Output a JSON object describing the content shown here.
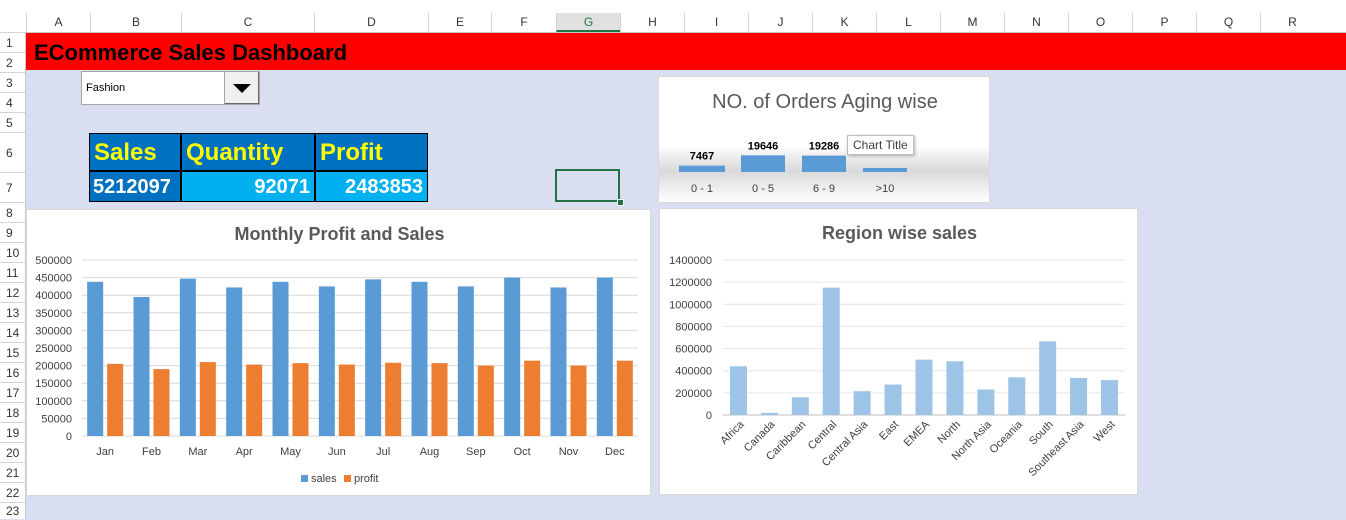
{
  "sheet": {
    "columns": [
      "A",
      "B",
      "C",
      "D",
      "E",
      "F",
      "G",
      "H",
      "I",
      "J",
      "K",
      "L",
      "M",
      "N",
      "O",
      "P",
      "Q",
      "R"
    ],
    "active_column": "G",
    "rows": [
      "1",
      "2",
      "3",
      "4",
      "5",
      "6",
      "7",
      "8",
      "9",
      "10",
      "11",
      "12",
      "13",
      "14",
      "15",
      "16",
      "17",
      "18",
      "19",
      "20",
      "21",
      "22",
      "23"
    ]
  },
  "dashboard": {
    "title": "ECommerce Sales Dashboard",
    "category_dropdown": {
      "value": "Fashion"
    },
    "kpi": {
      "headers": [
        "Sales",
        "Quantity",
        "Profit"
      ],
      "values": [
        "5212097",
        "92071",
        "2483853"
      ]
    },
    "tooltip": "Chart Title"
  },
  "colors": {
    "title_bar": "#ff0000",
    "kpi_header": "#0070c0",
    "kpi_value": "#00b0f0",
    "sales_series": "#5b9bd5",
    "profit_series": "#ed7d31",
    "region_series": "#9dc3e6"
  },
  "chart_data": [
    {
      "type": "bar",
      "title": "NO. of Orders Aging wise",
      "categories": [
        "0 - 1",
        "0 - 5",
        "6 - 9",
        ">10"
      ],
      "values": [
        7467,
        19646,
        19286,
        null
      ],
      "data_labels": [
        "7467",
        "19646",
        "19286",
        ""
      ]
    },
    {
      "type": "bar",
      "title": "Monthly Profit and Sales",
      "categories": [
        "Jan",
        "Feb",
        "Mar",
        "Apr",
        "May",
        "Jun",
        "Jul",
        "Aug",
        "Sep",
        "Oct",
        "Nov",
        "Dec"
      ],
      "series": [
        {
          "name": "sales",
          "values": [
            438000,
            395000,
            447000,
            422000,
            438000,
            425000,
            445000,
            438000,
            425000,
            450000,
            422000,
            450000
          ]
        },
        {
          "name": "profit",
          "values": [
            205000,
            190000,
            210000,
            203000,
            207000,
            203000,
            208000,
            207000,
            200000,
            214000,
            200000,
            214000
          ]
        }
      ],
      "ylim": [
        0,
        500000
      ],
      "yticks": [
        "0",
        "50000",
        "100000",
        "150000",
        "200000",
        "250000",
        "300000",
        "350000",
        "400000",
        "450000",
        "500000"
      ],
      "legend": "bottom",
      "grid": true
    },
    {
      "type": "bar",
      "title": "Region wise sales",
      "categories": [
        "Africa",
        "Canada",
        "Caribbean",
        "Central",
        "Central Asia",
        "East",
        "EMEA",
        "North",
        "North Asia",
        "Oceania",
        "South",
        "Southeast Asia",
        "West"
      ],
      "values": [
        440000,
        20000,
        160000,
        1150000,
        215000,
        275000,
        500000,
        485000,
        230000,
        340000,
        665000,
        335000,
        315000
      ],
      "ylim": [
        0,
        1400000
      ],
      "yticks": [
        "0",
        "200000",
        "400000",
        "600000",
        "800000",
        "1000000",
        "1200000",
        "1400000"
      ],
      "grid": true
    }
  ]
}
